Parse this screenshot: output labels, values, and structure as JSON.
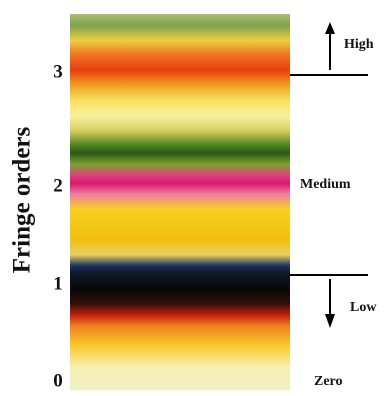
{
  "axis": {
    "title": "Fringe orders",
    "ticks": [
      "0",
      "1",
      "2",
      "3"
    ]
  },
  "regions": {
    "high": "High",
    "medium": "Medium",
    "low": "Low",
    "zero": "Zero"
  }
}
